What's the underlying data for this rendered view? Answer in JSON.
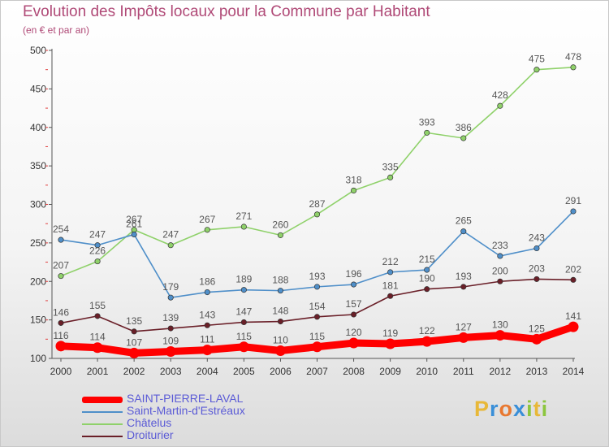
{
  "header": {
    "title": "Evolution des Impôts locaux pour la Commune par Habitant",
    "subtitle": "(en € et par an)"
  },
  "brand": {
    "letters": [
      "P",
      "r",
      "o",
      "x",
      "i",
      "t",
      "i"
    ],
    "colors": [
      "#e8b838",
      "#3a8fd8",
      "#e87830",
      "#3a8fd8",
      "#8cc63e",
      "#e8b838",
      "#8cc63e"
    ]
  },
  "colors": {
    "title": "#b04a77",
    "legend_text": "#5b5bd6",
    "axis_text": "#333333"
  },
  "chart_data": {
    "type": "line",
    "title": "Evolution des Impôts locaux pour la Commune par Habitant",
    "subtitle": "(en € et par an)",
    "x": [
      "2000",
      "2001",
      "2002",
      "2003",
      "2004",
      "2005",
      "2006",
      "2007",
      "2008",
      "2009",
      "2010",
      "2011",
      "2012",
      "2013",
      "2014"
    ],
    "yticks": [
      100,
      150,
      200,
      250,
      300,
      350,
      400,
      450,
      500
    ],
    "ylim": [
      100,
      500
    ],
    "grid": false,
    "legend_position": "bottom-left",
    "series": [
      {
        "name": "SAINT-PIERRE-LAVAL",
        "color": "#ff0000",
        "labels_color": "#555555",
        "emphasis": true,
        "values": [
          116,
          114,
          107,
          109,
          111,
          115,
          110,
          115,
          120,
          119,
          122,
          127,
          130,
          125,
          141
        ]
      },
      {
        "name": "Saint-Martin-d'Estréaux",
        "color": "#4f8fc9",
        "labels_color": "#555555",
        "values": [
          254,
          247,
          261,
          179,
          186,
          189,
          188,
          193,
          196,
          212,
          215,
          265,
          233,
          243,
          291
        ]
      },
      {
        "name": "Châtelus",
        "color": "#8fd16a",
        "labels_color": "#555555",
        "values": [
          207,
          226,
          267,
          247,
          267,
          271,
          260,
          287,
          318,
          335,
          393,
          386,
          428,
          475,
          478
        ]
      },
      {
        "name": "Droiturier",
        "color": "#6a1f28",
        "labels_color": "#555555",
        "values": [
          146,
          155,
          135,
          139,
          143,
          147,
          148,
          154,
          157,
          181,
          190,
          193,
          200,
          203,
          202
        ]
      }
    ]
  }
}
